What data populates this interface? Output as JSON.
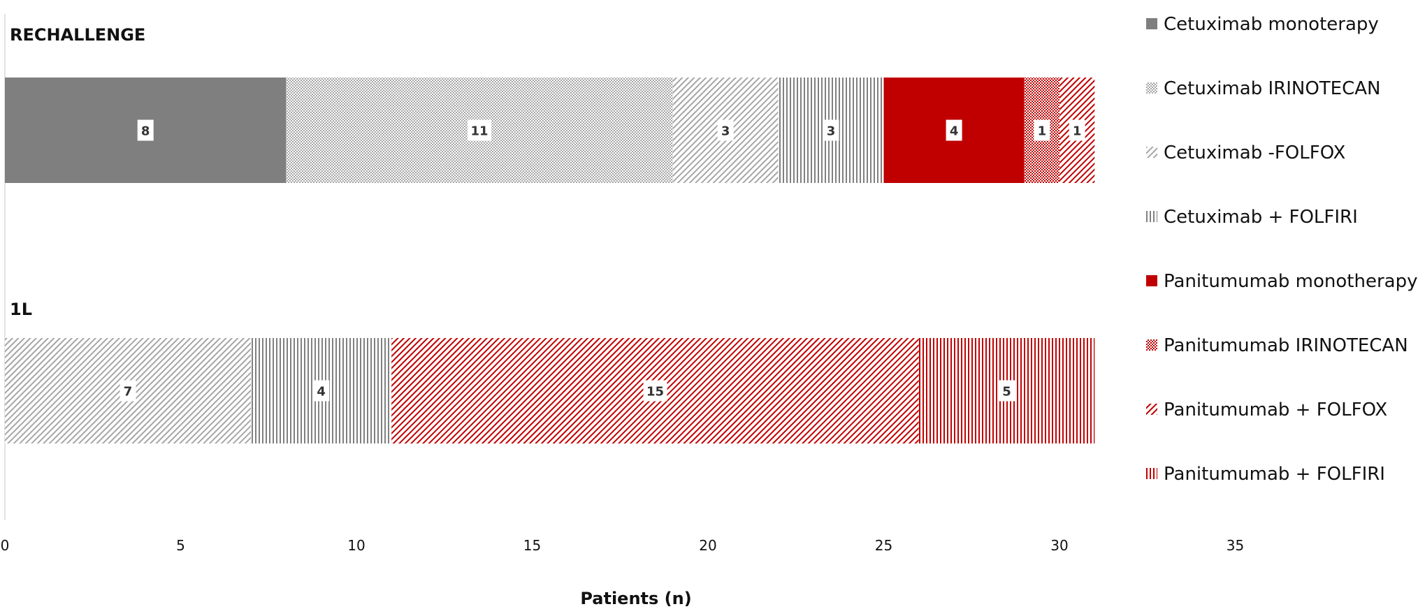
{
  "chart_data": {
    "type": "bar",
    "orientation": "horizontal",
    "stacked": true,
    "title": "",
    "xlabel": "Patients (n)",
    "ylabel": "",
    "xlim": [
      0,
      35
    ],
    "xticks": [
      0,
      5,
      10,
      15,
      20,
      25,
      30,
      35
    ],
    "grid": false,
    "legend_position": "right",
    "categories": [
      "RECHALLENGE",
      "1L"
    ],
    "series": [
      {
        "name": "Cetuximab monoterapy",
        "color": "#7f7f7f",
        "pattern": "solid",
        "values": [
          8,
          0
        ]
      },
      {
        "name": "Cetuximab IRINOTECAN",
        "color": "#a6a6a6",
        "pattern": "dense-dots",
        "values": [
          11,
          0
        ]
      },
      {
        "name": "Cetuximab -FOLFOX",
        "color": "#a6a6a6",
        "pattern": "diagonal",
        "values": [
          3,
          7
        ]
      },
      {
        "name": "Cetuximab + FOLFIRI",
        "color": "#808080",
        "pattern": "vertical",
        "values": [
          3,
          4
        ]
      },
      {
        "name": "Panitumumab monotherapy",
        "color": "#c00000",
        "pattern": "solid",
        "values": [
          4,
          0
        ]
      },
      {
        "name": "Panitumumab IRINOTECAN",
        "color": "#c00000",
        "pattern": "dense-dots",
        "values": [
          1,
          0
        ]
      },
      {
        "name": "Panitumumab + FOLFOX",
        "color": "#c00000",
        "pattern": "diagonal",
        "values": [
          1,
          15
        ]
      },
      {
        "name": "Panitumumab + FOLFIRI",
        "color": "#c00000",
        "pattern": "vertical",
        "values": [
          0,
          5
        ]
      }
    ]
  }
}
